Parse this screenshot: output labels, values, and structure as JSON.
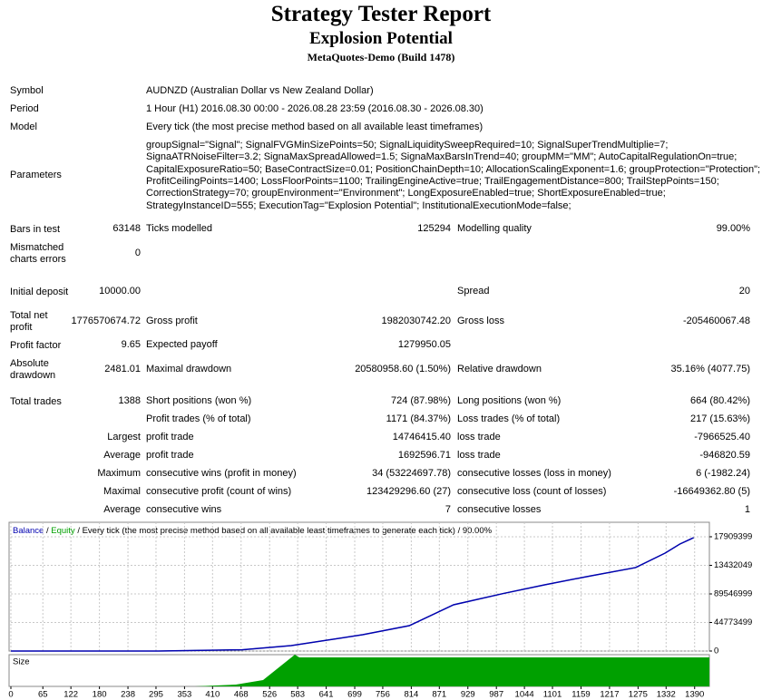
{
  "header": {
    "title": "Strategy Tester Report",
    "subtitle": "Explosion Potential",
    "build": "MetaQuotes-Demo (Build 1478)"
  },
  "info": [
    {
      "label": "Symbol",
      "value": [
        "AUDNZD (Australian Dollar vs New Zealand Dollar)"
      ]
    },
    {
      "label": "Period",
      "value": [
        "1 Hour (H1) 2016.08.30 00:00 - 2026.08.28 23:59 (2016.08.30 - 2026.08.30)"
      ]
    },
    {
      "label": "Model",
      "value": [
        "Every tick (the most precise method based on all available least timeframes)"
      ]
    },
    {
      "label": "Parameters",
      "value": [
        "groupSignal=\"Signal\"; SignalFVGMinSizePoints=50; SignalLiquiditySweepRequired=10; SignalSuperTrendMultiplie=7;",
        "SignaATRNoiseFilter=3.2; SignaMaxSpreadAllowed=1.5; SignaMaxBarsInTrend=40; groupMM=\"MM\"; AutoCapitalRegulationOn=true;",
        "CapitalExposureRatio=50; BaseContractSize=0.01; PositionChainDepth=10; AllocationScalingExponent=1.6; groupProtection=\"Protection\";",
        "ProfitCeilingPoints=1400; LossFloorPoints=1100; TrailingEngineActive=true; TrailEngagementDistance=800; TrailStepPoints=150;",
        "CorrectionStrategy=70; groupEnvironment=\"Environment\"; LongExposureEnabled=true; ShortExposureEnabled=true;",
        "StrategyInstanceID=555; ExecutionTag=\"Explosion Potential\"; InstitutionalExecutionMode=false;"
      ]
    }
  ],
  "stats": [
    {
      "label": "Bars in test",
      "value": "63148",
      "label2": "Ticks modelled",
      "value2": "125294",
      "label3": "Modelling quality",
      "value3": "99.00%"
    },
    {
      "label": "Mismatched charts errors",
      "value": "0"
    },
    {
      "label": "Initial deposit",
      "value": "10000.00",
      "label3": "Spread",
      "value3": "20"
    },
    {
      "label": "Total net profit",
      "value": "1776570674.72",
      "label2": "Gross profit",
      "value2": "1982030742.20",
      "label3": "Gross loss",
      "value3": "-205460067.48"
    },
    {
      "label": "Profit factor",
      "value": "9.65",
      "label2": "Expected payoff",
      "value2": "1279950.05"
    },
    {
      "label": "Absolute drawdown",
      "value": "2481.01",
      "label2": "Maximal drawdown",
      "value2": "20580958.60 (1.50%)",
      "label3": "Relative drawdown",
      "value3": "35.16% (4077.75)"
    },
    {
      "label": "Total trades",
      "value": "1388",
      "label2": "Short positions (won %)",
      "value2": "724 (87.98%)",
      "label3": "Long positions (won %)",
      "value3": "664 (80.42%)"
    },
    {
      "label2": "Profit trades (% of total)",
      "value2": "1171 (84.37%)",
      "label3": "Loss trades (% of total)",
      "value3": "217 (15.63%)"
    },
    {
      "rlabel": "Largest",
      "label2": "profit trade",
      "value2": "14746415.40",
      "label3": "loss trade",
      "value3": "-7966525.40"
    },
    {
      "rlabel": "Average",
      "label2": "profit trade",
      "value2": "1692596.71",
      "label3": "loss trade",
      "value3": "-946820.59"
    },
    {
      "rlabel": "Maximum",
      "label2": "consecutive wins (profit in money)",
      "value2": "34 (53224697.78)",
      "label3": "consecutive losses (loss in money)",
      "value3": "6 (-1982.24)"
    },
    {
      "rlabel": "Maximal",
      "label2": "consecutive profit (count of wins)",
      "value2": "123429296.60 (27)",
      "label3": "consecutive loss (count of losses)",
      "value3": "-16649362.80 (5)"
    },
    {
      "rlabel": "Average",
      "label2": "consecutive wins",
      "value2": "7",
      "label3": "consecutive losses",
      "value3": "1"
    }
  ],
  "chart_data": {
    "type": "line",
    "legend": {
      "balance": "Balance",
      "separator": "/",
      "equity": "Equity",
      "description": "/ Every tick (the most precise method based on all available least timeframes to generate each tick) / 90.00%"
    },
    "size_label": "Size",
    "x": [
      0,
      300,
      470,
      570,
      715,
      810,
      900,
      1000,
      1085,
      1180,
      1270,
      1330,
      1360,
      1388
    ],
    "series": [
      {
        "name": "Balance",
        "color": "#0000b0",
        "values": [
          10000,
          10000,
          20000000,
          85000000,
          256000000,
          398000000,
          725000000,
          900000000,
          1038000000,
          1180000000,
          1308000000,
          1535000000,
          1677000000,
          1776580674
        ]
      }
    ],
    "equity_color": "#00a000",
    "xlim": [
      0,
      1420
    ],
    "xticks": [
      0,
      65,
      122,
      180,
      238,
      295,
      353,
      410,
      468,
      526,
      583,
      641,
      699,
      756,
      814,
      871,
      929,
      987,
      1044,
      1101,
      1159,
      1217,
      1275,
      1332,
      1390
    ],
    "ylim": [
      0,
      2018000000
    ],
    "yticks": [
      0,
      {
        "value": 447735000,
        "label": "44773499"
      },
      {
        "value": 895470000,
        "label": "89546999"
      },
      {
        "value": 1343205000,
        "label": "13432049"
      },
      {
        "value": 1790940000,
        "label": "17909399"
      }
    ],
    "grid": true
  }
}
